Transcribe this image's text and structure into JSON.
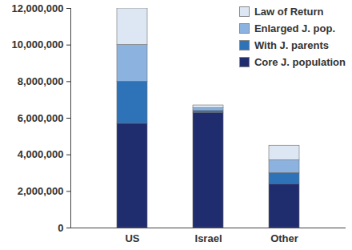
{
  "chart_data": {
    "type": "bar",
    "stacked": true,
    "categories": [
      "US",
      "Israel",
      "Other"
    ],
    "series": [
      {
        "name": "Core J. population",
        "color": "#1f2c6e",
        "values": [
          5700000,
          6300000,
          2400000
        ]
      },
      {
        "name": "With J. parents",
        "color": "#2e72b8",
        "values": [
          2300000,
          100000,
          600000
        ]
      },
      {
        "name": "Enlarged J. pop.",
        "color": "#8cb2e0",
        "values": [
          2000000,
          150000,
          700000
        ]
      },
      {
        "name": "Law of Return",
        "color": "#dde7f3",
        "values": [
          2000000,
          150000,
          800000
        ]
      }
    ],
    "ylim": [
      0,
      12000000
    ],
    "yticks": [
      0,
      {
        "value": 2000000,
        "label": "2,000,000"
      },
      {
        "value": 4000000,
        "label": "4,000,000"
      },
      {
        "value": 6000000,
        "label": "6,000,000"
      },
      {
        "value": 8000000,
        "label": "8,000,000"
      },
      {
        "value": 10000000,
        "label": "10,000,000"
      },
      {
        "value": 12000000,
        "label": "12,000,000"
      }
    ],
    "grid": false,
    "legend": "top-right"
  }
}
